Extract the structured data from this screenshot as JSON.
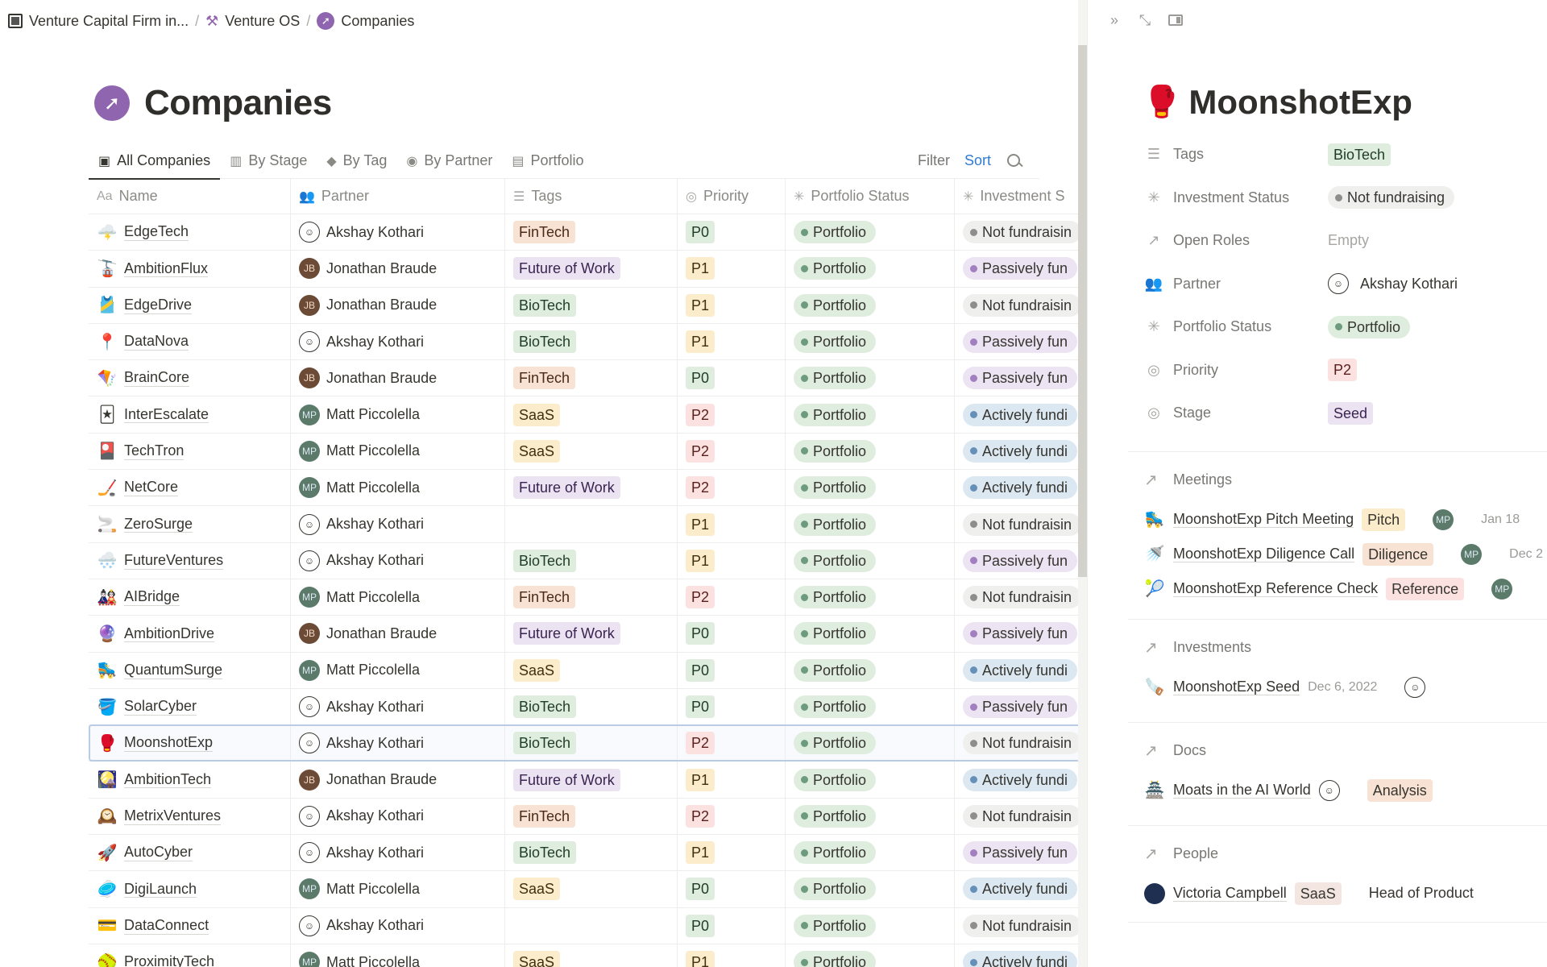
{
  "breadcrumb": [
    {
      "icon": "chip-icon",
      "label": "Venture Capital Firm in..."
    },
    {
      "icon": "hammer-icon",
      "label": "Venture OS"
    },
    {
      "icon": "compass-icon",
      "label": "Companies"
    }
  ],
  "page": {
    "title": "Companies",
    "icon": "compass-icon"
  },
  "tabs": [
    {
      "label": "All Companies",
      "icon": "chip-icon",
      "active": true
    },
    {
      "label": "By Stage",
      "icon": "column-icon"
    },
    {
      "label": "By Tag",
      "icon": "tag-icon"
    },
    {
      "label": "By Partner",
      "icon": "person-circle-icon"
    },
    {
      "label": "Portfolio",
      "icon": "briefcase-icon"
    }
  ],
  "toolbar": {
    "filter": "Filter",
    "sort": "Sort",
    "search": "search-icon"
  },
  "columns": [
    {
      "label": "Name",
      "icon": "Aa"
    },
    {
      "label": "Partner",
      "icon": "people-icon"
    },
    {
      "label": "Tags",
      "icon": "list-icon"
    },
    {
      "label": "Priority",
      "icon": "select-icon"
    },
    {
      "label": "Portfolio Status",
      "icon": "status-icon"
    },
    {
      "label": "Investment S",
      "icon": "status-icon"
    }
  ],
  "colors": {
    "tags": {
      "FinTech": {
        "bg": "#f8e2d3",
        "fg": "#4a2a17"
      },
      "Future of Work": {
        "bg": "#ebe3f2",
        "fg": "#3a2450"
      },
      "BioTech": {
        "bg": "#dfeddf",
        "fg": "#1f3d25"
      },
      "SaaS": {
        "bg": "#fbeccb",
        "fg": "#40300c"
      }
    },
    "priority": {
      "P0": {
        "bg": "#dfeddf",
        "fg": "#1f3d25"
      },
      "P1": {
        "bg": "#fbeccb",
        "fg": "#40300c"
      },
      "P2": {
        "bg": "#fbe2e0",
        "fg": "#5a1f1a"
      }
    },
    "status": {
      "Portfolio": {
        "bg": "#dfeddf",
        "dot": "#6c9b7d"
      },
      "Not fundraising": {
        "bg": "#efefee",
        "dot": "#8f8e8a"
      },
      "Passively fundraising": {
        "bg": "#ece3f3",
        "dot": "#a17fc1"
      },
      "Actively fundraising": {
        "bg": "#dbe8f2",
        "dot": "#6790b8"
      }
    },
    "accent_sort": "#2f7cd0",
    "selection_border": "#b9cbe5"
  },
  "rows": [
    {
      "emoji": "🌩️",
      "name": "EdgeTech",
      "partner": "Akshay Kothari",
      "tag": "FinTech",
      "priority": "P0",
      "portfolio_status": "Portfolio",
      "investment_status": "Not fundraisin"
    },
    {
      "emoji": "🚡",
      "name": "AmbitionFlux",
      "partner": "Jonathan Braude",
      "tag": "Future of Work",
      "priority": "P1",
      "portfolio_status": "Portfolio",
      "investment_status": "Passively fun"
    },
    {
      "emoji": "🎽",
      "name": "EdgeDrive",
      "partner": "Jonathan Braude",
      "tag": "BioTech",
      "priority": "P1",
      "portfolio_status": "Portfolio",
      "investment_status": "Not fundraisin"
    },
    {
      "emoji": "📍",
      "name": "DataNova",
      "partner": "Akshay Kothari",
      "tag": "BioTech",
      "priority": "P1",
      "portfolio_status": "Portfolio",
      "investment_status": "Passively fun"
    },
    {
      "emoji": "🪁",
      "name": "BrainCore",
      "partner": "Jonathan Braude",
      "tag": "FinTech",
      "priority": "P0",
      "portfolio_status": "Portfolio",
      "investment_status": "Passively fun"
    },
    {
      "emoji": "🃏",
      "name": "InterEscalate",
      "partner": "Matt Piccolella",
      "tag": "SaaS",
      "priority": "P2",
      "portfolio_status": "Portfolio",
      "investment_status": "Actively fundi"
    },
    {
      "emoji": "🎴",
      "name": "TechTron",
      "partner": "Matt Piccolella",
      "tag": "SaaS",
      "priority": "P2",
      "portfolio_status": "Portfolio",
      "investment_status": "Actively fundi"
    },
    {
      "emoji": "🏒",
      "name": "NetCore",
      "partner": "Matt Piccolella",
      "tag": "Future of Work",
      "priority": "P2",
      "portfolio_status": "Portfolio",
      "investment_status": "Actively fundi"
    },
    {
      "emoji": "🚬",
      "name": "ZeroSurge",
      "partner": "Akshay Kothari",
      "tag": "",
      "priority": "P1",
      "portfolio_status": "Portfolio",
      "investment_status": "Not fundraisin"
    },
    {
      "emoji": "🌨️",
      "name": "FutureVentures",
      "partner": "Akshay Kothari",
      "tag": "BioTech",
      "priority": "P1",
      "portfolio_status": "Portfolio",
      "investment_status": "Passively fun"
    },
    {
      "emoji": "🎎",
      "name": "AIBridge",
      "partner": "Matt Piccolella",
      "tag": "FinTech",
      "priority": "P2",
      "portfolio_status": "Portfolio",
      "investment_status": "Not fundraisin"
    },
    {
      "emoji": "🔮",
      "name": "AmbitionDrive",
      "partner": "Jonathan Braude",
      "tag": "Future of Work",
      "priority": "P0",
      "portfolio_status": "Portfolio",
      "investment_status": "Passively fun"
    },
    {
      "emoji": "🛼",
      "name": "QuantumSurge",
      "partner": "Matt Piccolella",
      "tag": "SaaS",
      "priority": "P0",
      "portfolio_status": "Portfolio",
      "investment_status": "Actively fundi"
    },
    {
      "emoji": "🪣",
      "name": "SolarCyber",
      "partner": "Akshay Kothari",
      "tag": "BioTech",
      "priority": "P0",
      "portfolio_status": "Portfolio",
      "investment_status": "Passively fun"
    },
    {
      "emoji": "🥊",
      "name": "MoonshotExp",
      "partner": "Akshay Kothari",
      "tag": "BioTech",
      "priority": "P2",
      "portfolio_status": "Portfolio",
      "investment_status": "Not fundraisin",
      "selected": true
    },
    {
      "emoji": "🎑",
      "name": "AmbitionTech",
      "partner": "Jonathan Braude",
      "tag": "Future of Work",
      "priority": "P1",
      "portfolio_status": "Portfolio",
      "investment_status": "Actively fundi"
    },
    {
      "emoji": "🕰️",
      "name": "MetrixVentures",
      "partner": "Akshay Kothari",
      "tag": "FinTech",
      "priority": "P2",
      "portfolio_status": "Portfolio",
      "investment_status": "Not fundraisin"
    },
    {
      "emoji": "🚀",
      "name": "AutoCyber",
      "partner": "Akshay Kothari",
      "tag": "BioTech",
      "priority": "P1",
      "portfolio_status": "Portfolio",
      "investment_status": "Passively fun"
    },
    {
      "emoji": "🥏",
      "name": "DigiLaunch",
      "partner": "Matt Piccolella",
      "tag": "SaaS",
      "priority": "P0",
      "portfolio_status": "Portfolio",
      "investment_status": "Actively fundi"
    },
    {
      "emoji": "💳",
      "name": "DataConnect",
      "partner": "Akshay Kothari",
      "tag": "",
      "priority": "P0",
      "portfolio_status": "Portfolio",
      "investment_status": "Not fundraisin"
    },
    {
      "emoji": "🥎",
      "name": "ProximityTech",
      "partner": "Matt Piccolella",
      "tag": "SaaS",
      "priority": "P1",
      "portfolio_status": "Portfolio",
      "investment_status": "Actively fundi"
    }
  ],
  "peek": {
    "controls": [
      "collapse-icon",
      "expand-icon",
      "panel-icon"
    ],
    "title": "MoonshotExp",
    "emoji": "🥊",
    "properties": [
      {
        "label": "Tags",
        "icon": "list-icon",
        "type": "tag",
        "value": "BioTech"
      },
      {
        "label": "Investment Status",
        "icon": "status-icon",
        "type": "status",
        "value": "Not fundraising"
      },
      {
        "label": "Open Roles",
        "icon": "relation-icon",
        "type": "empty",
        "value": "Empty"
      },
      {
        "label": "Partner",
        "icon": "people-icon",
        "type": "person",
        "value": "Akshay Kothari"
      },
      {
        "label": "Portfolio Status",
        "icon": "status-icon",
        "type": "status",
        "value": "Portfolio"
      },
      {
        "label": "Priority",
        "icon": "select-icon",
        "type": "priority",
        "value": "P2"
      },
      {
        "label": "Stage",
        "icon": "select-icon",
        "type": "stage",
        "value": "Seed"
      }
    ],
    "stage_color": {
      "bg": "#ebe3f2",
      "fg": "#3a2450"
    },
    "meetings": {
      "label": "Meetings",
      "items": [
        {
          "emoji": "🛼",
          "name": "MoonshotExp Pitch Meeting",
          "tag": "Pitch",
          "tag_bg": "#fbeccb",
          "person": "Matt Piccolella",
          "date": "Jan 18"
        },
        {
          "emoji": "🚿",
          "name": "MoonshotExp Diligence Call",
          "tag": "Diligence",
          "tag_bg": "#f8e2d3",
          "person": "Matt Piccolella",
          "date": "Dec 2"
        },
        {
          "emoji": "🎾",
          "name": "MoonshotExp Reference Check",
          "tag": "Reference",
          "tag_bg": "#fbe2e0",
          "person": "Matt Piccolella",
          "date": ""
        }
      ]
    },
    "investments": {
      "label": "Investments",
      "items": [
        {
          "emoji": "🪚",
          "name": "MoonshotExp Seed",
          "date": "Dec 6, 2022",
          "person": "Akshay Kothari"
        }
      ]
    },
    "docs": {
      "label": "Docs",
      "items": [
        {
          "emoji": "🏯",
          "name": "Moats in the AI World",
          "person": "author",
          "tag": "Analysis",
          "tag_bg": "#f8e2d3"
        }
      ]
    },
    "people": {
      "label": "People",
      "items": [
        {
          "name": "Victoria Campbell",
          "tag": "SaaS",
          "tag_bg": "#f3e6e1",
          "role": "Head of Product"
        }
      ]
    }
  }
}
